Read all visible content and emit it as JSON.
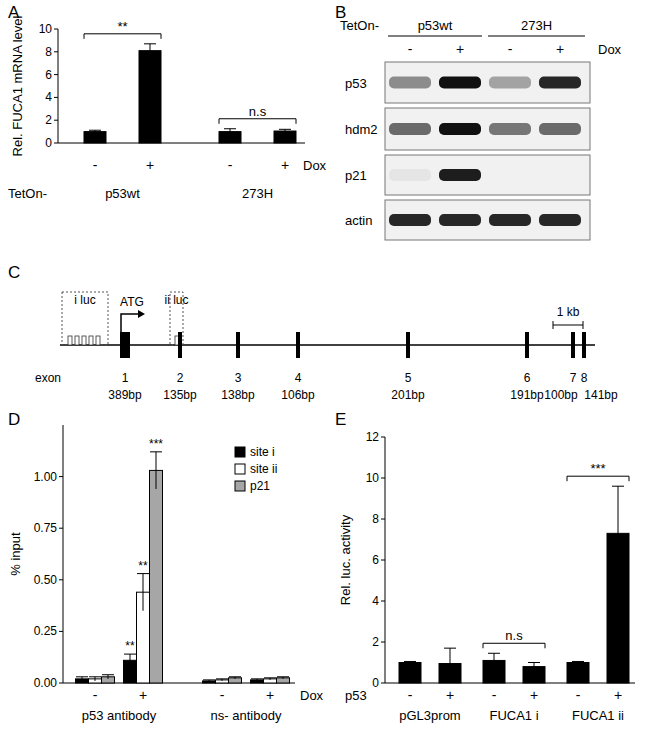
{
  "panel_labels": [
    "A",
    "B",
    "C",
    "D",
    "E"
  ],
  "chart_data": [
    {
      "type": "bar",
      "y_label": "Rel. FUCA1 mRNA level",
      "categories": [
        "-",
        "+",
        "-",
        "+"
      ],
      "category_title": "Dox",
      "groups": [
        "p53wt",
        "273H"
      ],
      "group_title": "TetOn-",
      "series": [
        {
          "color": "#000000",
          "values": [
            1.0,
            8.1,
            1.0,
            1.05
          ],
          "errors": [
            0.12,
            0.6,
            0.25,
            0.15
          ]
        }
      ],
      "ylim": [
        0,
        10
      ],
      "yticks": [
        0,
        2,
        4,
        6,
        8,
        10
      ],
      "annotations": [
        {
          "text": "**",
          "categories": [
            0,
            1
          ]
        },
        {
          "text": "n.s",
          "categories": [
            2,
            3
          ]
        }
      ]
    },
    {
      "type": "bar",
      "y_label": "% input",
      "categories": [
        "-",
        "+",
        "-",
        "+"
      ],
      "category_title": "Dox",
      "groups": [
        "p53 antibody",
        "ns- antibody"
      ],
      "series": [
        {
          "name": "site i",
          "color": "#000000",
          "values": [
            0.02,
            0.11,
            0.01,
            0.015
          ],
          "errors": [
            0.01,
            0.03,
            0.005,
            0.005
          ]
        },
        {
          "name": "site ii",
          "color": "#ffffff",
          "values": [
            0.02,
            0.44,
            0.015,
            0.02
          ],
          "errors": [
            0.01,
            0.09,
            0.005,
            0.005
          ]
        },
        {
          "name": "p21",
          "color": "#a6a6a6",
          "values": [
            0.03,
            1.03,
            0.025,
            0.025
          ],
          "errors": [
            0.01,
            0.09,
            0.005,
            0.005
          ]
        }
      ],
      "ylim": [
        0,
        1.25
      ],
      "yticks": [
        {
          "value": 0,
          "label": "0.00"
        },
        {
          "value": 0.25,
          "label": "0.25"
        },
        {
          "value": 0.5,
          "label": "0.50"
        },
        {
          "value": 0.75,
          "label": "0.75"
        },
        {
          "value": 1,
          "label": "1.00"
        }
      ],
      "legend": "upper right",
      "annotations": [
        {
          "text": "**",
          "series": 0,
          "index": 1
        },
        {
          "text": "**",
          "series": 1,
          "index": 1
        },
        {
          "text": "***",
          "series": 2,
          "index": 1
        }
      ]
    },
    {
      "type": "bar",
      "y_label": "Rel. luc. activity",
      "categories": [
        "-",
        "+",
        "-",
        "+",
        "-",
        "+"
      ],
      "category_title": "p53",
      "groups": [
        "pGL3prom",
        "FUCA1 i",
        "FUCA1 ii"
      ],
      "series": [
        {
          "color": "#000000",
          "values": [
            1.0,
            0.95,
            1.1,
            0.8,
            1.0,
            7.3
          ],
          "errors": [
            0.05,
            0.75,
            0.35,
            0.2,
            0.05,
            2.3
          ]
        }
      ],
      "ylim": [
        0,
        12
      ],
      "yticks": [
        0,
        2,
        4,
        6,
        8,
        10,
        12
      ],
      "annotations": [
        {
          "text": "n.s",
          "categories": [
            2,
            3
          ]
        },
        {
          "text": "***",
          "categories": [
            4,
            5
          ]
        }
      ]
    }
  ],
  "blot": {
    "group_title": "TetOn-",
    "groups": [
      "p53wt",
      "273H"
    ],
    "lane_title": "Dox",
    "lanes": [
      "-",
      "+",
      "-",
      "+"
    ],
    "rows": [
      {
        "label": "p53",
        "signal": [
          0.45,
          1.0,
          0.35,
          0.9
        ]
      },
      {
        "label": "hdm2",
        "signal": [
          0.6,
          1.0,
          0.55,
          0.6
        ]
      },
      {
        "label": "p21",
        "signal": [
          0.05,
          0.95,
          0,
          0
        ]
      },
      {
        "label": "actin",
        "signal": [
          0.9,
          0.9,
          0.9,
          0.9
        ]
      }
    ]
  },
  "gene_map": {
    "regions": [
      "i luc",
      "ii luc"
    ],
    "start": "ATG",
    "scale": "1 kb",
    "exon_title": "exon",
    "exons": [
      {
        "number": 1,
        "size": "389bp"
      },
      {
        "number": 2,
        "size": "135bp"
      },
      {
        "number": 3,
        "size": "138bp"
      },
      {
        "number": 4,
        "size": "106bp"
      },
      {
        "number": 5,
        "size": "201bp"
      },
      {
        "number": 6,
        "size": "191bp"
      },
      {
        "number": 7,
        "size": "100bp"
      },
      {
        "number": 8,
        "size": "141bp"
      }
    ]
  }
}
